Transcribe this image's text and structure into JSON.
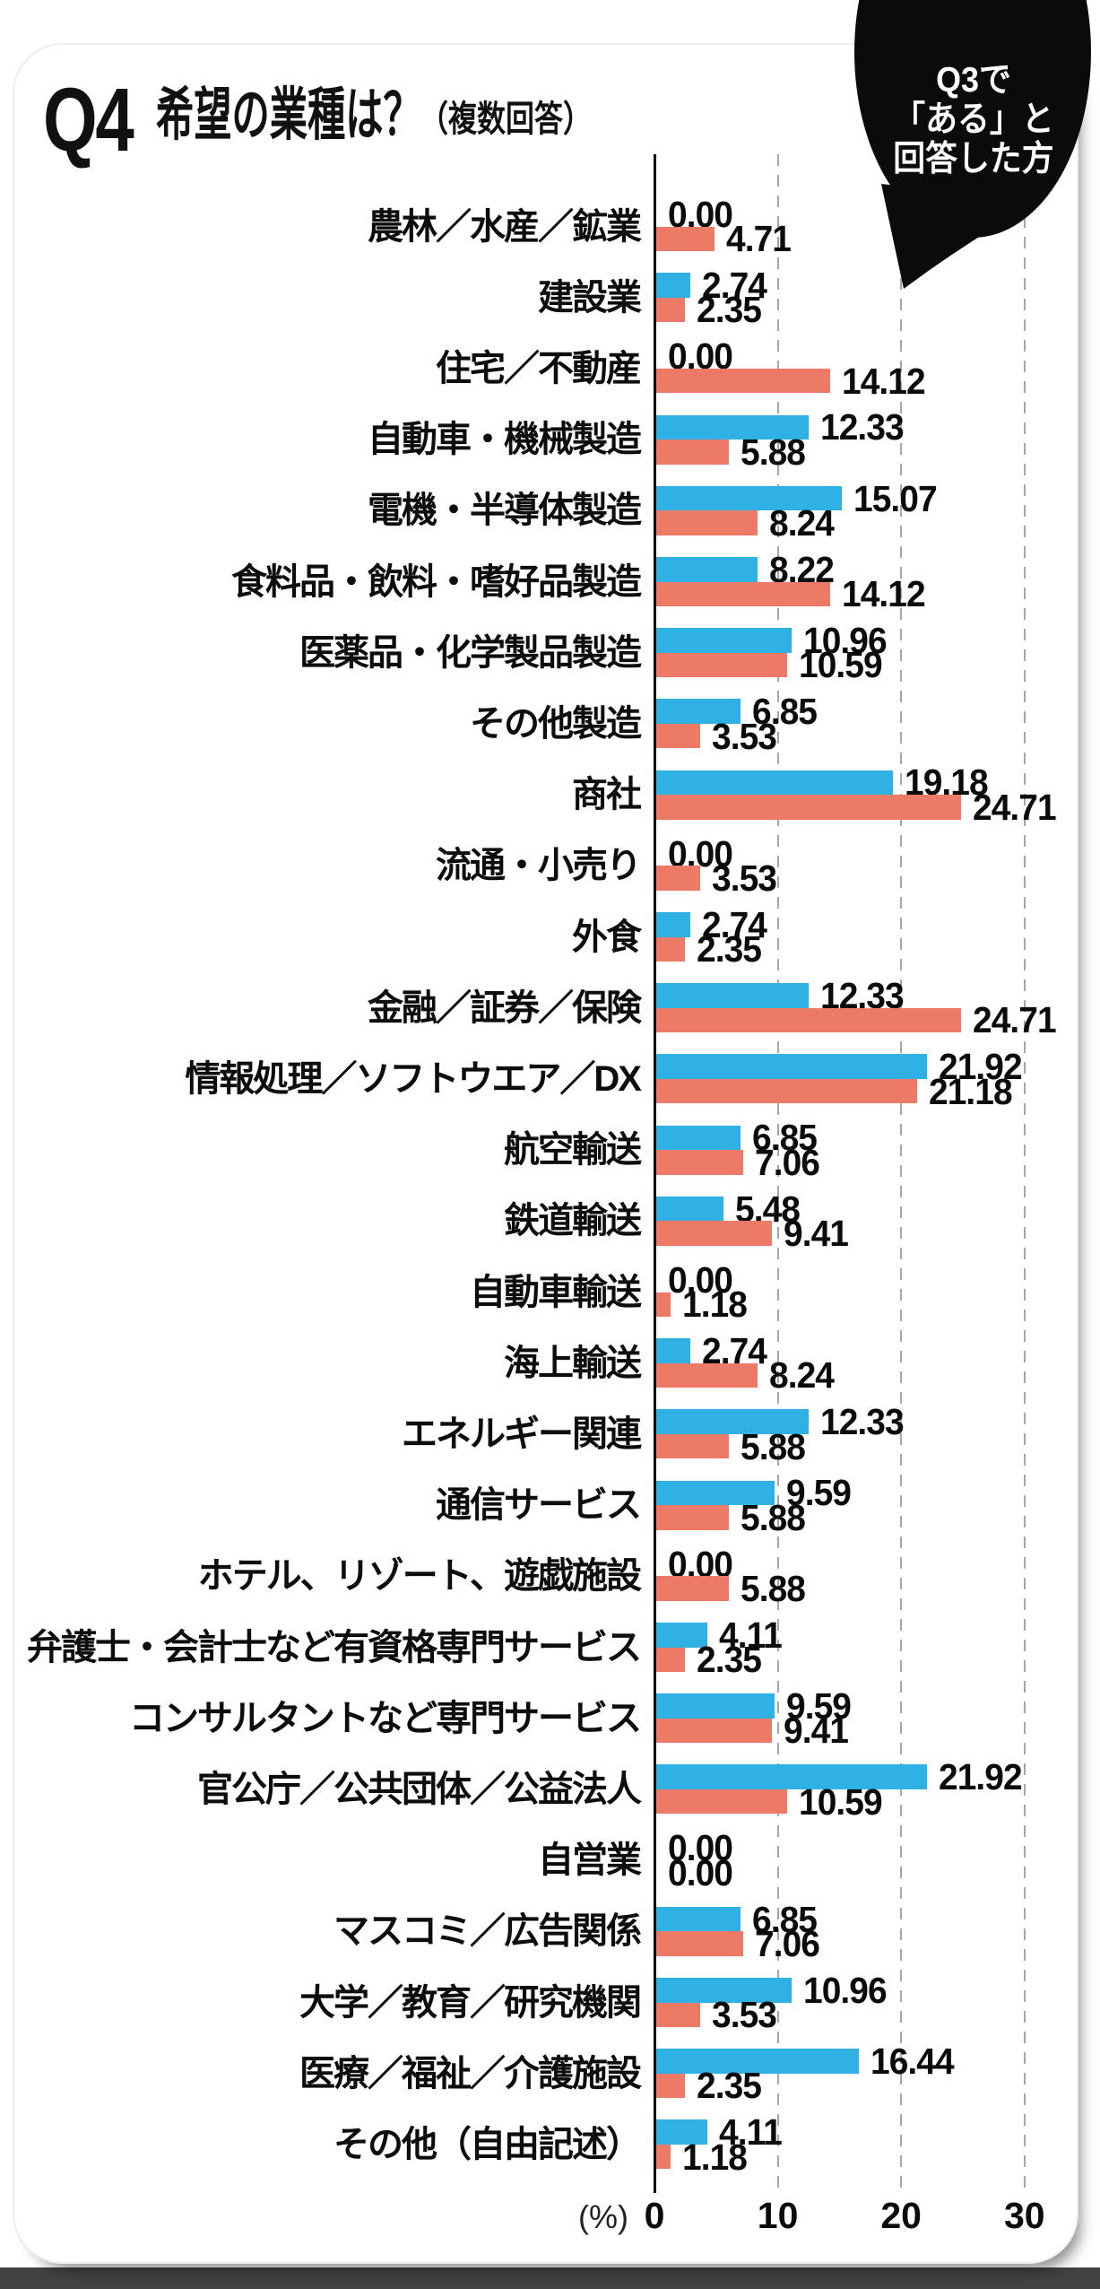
{
  "header": {
    "question_number": "Q4",
    "title": "希望の業種は？",
    "note": "（複数回答）"
  },
  "callout": {
    "lines": [
      "Q3で",
      "「ある」と",
      "回答した方"
    ],
    "background": "#0b0b0b",
    "text_color": "#ffffff"
  },
  "colors": {
    "series_blue": "#2FB2E3",
    "series_red": "#EC7A67",
    "grid": "#a6a6a6",
    "axis": "#000000",
    "card_background": "#ffffff",
    "bottom_band": "#424242"
  },
  "chart_data": {
    "type": "bar",
    "orientation": "horizontal",
    "unit_label": "(%)",
    "xlim": [
      0,
      30
    ],
    "x_ticks": [
      0,
      10,
      20,
      30
    ],
    "grid": "dashed-vertical",
    "legend": "none",
    "categories": [
      "農林／水産／鉱業",
      "建設業",
      "住宅／不動産",
      "自動車・機械製造",
      "電機・半導体製造",
      "食料品・飲料・嗜好品製造",
      "医薬品・化学製品製造",
      "その他製造",
      "商社",
      "流通・小売り",
      "外食",
      "金融／証券／保険",
      "情報処理／ソフトウエア／DX",
      "航空輸送",
      "鉄道輸送",
      "自動車輸送",
      "海上輸送",
      "エネルギー関連",
      "通信サービス",
      "ホテル、リゾート、遊戯施設",
      "弁護士・会計士など有資格専門サービス",
      "コンサルタントなど専門サービス",
      "官公庁／公共団体／公益法人",
      "自営業",
      "マスコミ／広告関係",
      "大学／教育／研究機関",
      "医療／福祉／介護施設",
      "その他（自由記述）"
    ],
    "series": [
      {
        "name": "blue",
        "color": "#2FB2E3",
        "values": [
          0.0,
          2.74,
          0.0,
          12.33,
          15.07,
          8.22,
          10.96,
          6.85,
          19.18,
          0.0,
          2.74,
          12.33,
          21.92,
          6.85,
          5.48,
          0.0,
          2.74,
          12.33,
          9.59,
          0.0,
          4.11,
          9.59,
          21.92,
          0.0,
          6.85,
          10.96,
          16.44,
          4.11
        ]
      },
      {
        "name": "red",
        "color": "#EC7A67",
        "values": [
          4.71,
          2.35,
          14.12,
          5.88,
          8.24,
          14.12,
          10.59,
          3.53,
          24.71,
          3.53,
          2.35,
          24.71,
          21.18,
          7.06,
          9.41,
          1.18,
          8.24,
          5.88,
          5.88,
          5.88,
          2.35,
          9.41,
          10.59,
          0.0,
          7.06,
          3.53,
          2.35,
          1.18
        ]
      }
    ]
  }
}
